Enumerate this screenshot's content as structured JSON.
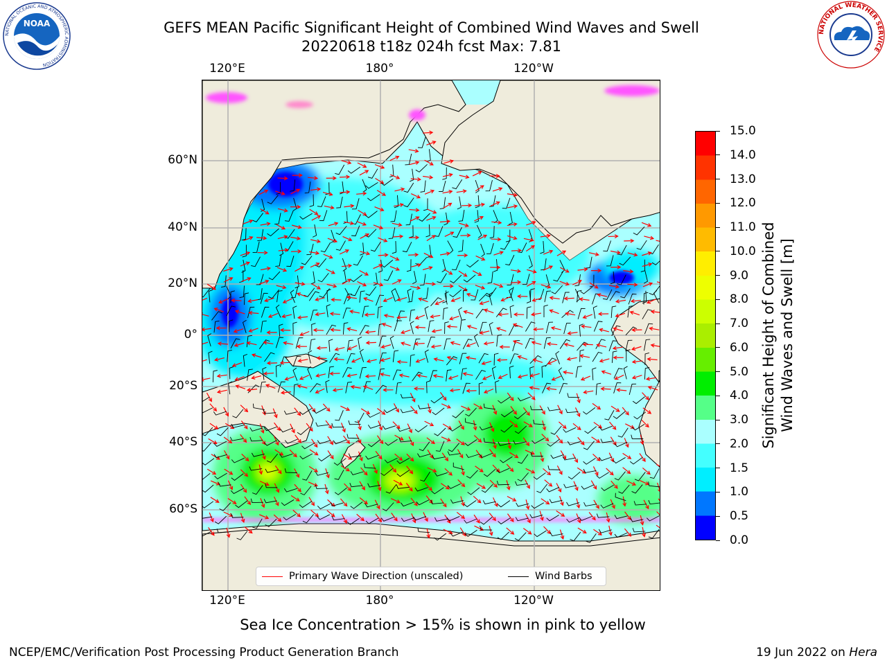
{
  "title_line1": "GEFS MEAN Pacific Significant Height of Combined Wind Waves and Swell",
  "title_line2": "20220618 t18z 024h fcst   Max: 7.81",
  "lon_ticks_top": [
    "120°E",
    "180°",
    "120°W"
  ],
  "lon_ticks_bottom": [
    "120°E",
    "180°",
    "120°W"
  ],
  "lat_ticks": [
    "60°N",
    "40°N",
    "20°N",
    "0°",
    "20°S",
    "40°S",
    "60°S"
  ],
  "legend": {
    "wave_direction": "Primary Wave Direction (unscaled)",
    "wind_barbs": "Wind Barbs",
    "wave_color": "#ff0000",
    "barb_color": "#000000"
  },
  "colorbar": {
    "label_line1": "Significant Height of Combined",
    "label_line2": "Wind Waves and Swell [m]",
    "ticks": [
      "15.0",
      "14.0",
      "13.0",
      "12.0",
      "11.0",
      "10.0",
      "9.0",
      "8.0",
      "7.0",
      "6.0",
      "5.0",
      "4.0",
      "3.0",
      "2.0",
      "1.5",
      "1.0",
      "0.5",
      "0.0"
    ],
    "colors_bottom_to_top": [
      "#0000ff",
      "#0077ff",
      "#00eeff",
      "#44ffff",
      "#aaffff",
      "#55ff88",
      "#00ee00",
      "#66ee00",
      "#aaee00",
      "#ccff00",
      "#eeff00",
      "#ffee00",
      "#ffbb00",
      "#ff9900",
      "#ff6600",
      "#ff3300",
      "#ff0000"
    ]
  },
  "note": "Sea Ice Concentration > 15% is shown in pink to yellow",
  "footer_left": "NCEP/EMC/Verification Post Processing Product Generation Branch",
  "footer_date": "19 Jun 2022 on ",
  "footer_host": "Hera",
  "logos": {
    "noaa_text": "NOAA",
    "noaa_ring": "NATIONAL OCEANIC AND ATMOSPHERIC ADMINISTRATION",
    "nws_ring": "NATIONAL WEATHER SERVICE"
  },
  "map_colors": {
    "land": "#efecdc",
    "ocean_base": "#aaffff",
    "grid": "#b0b0b0"
  }
}
